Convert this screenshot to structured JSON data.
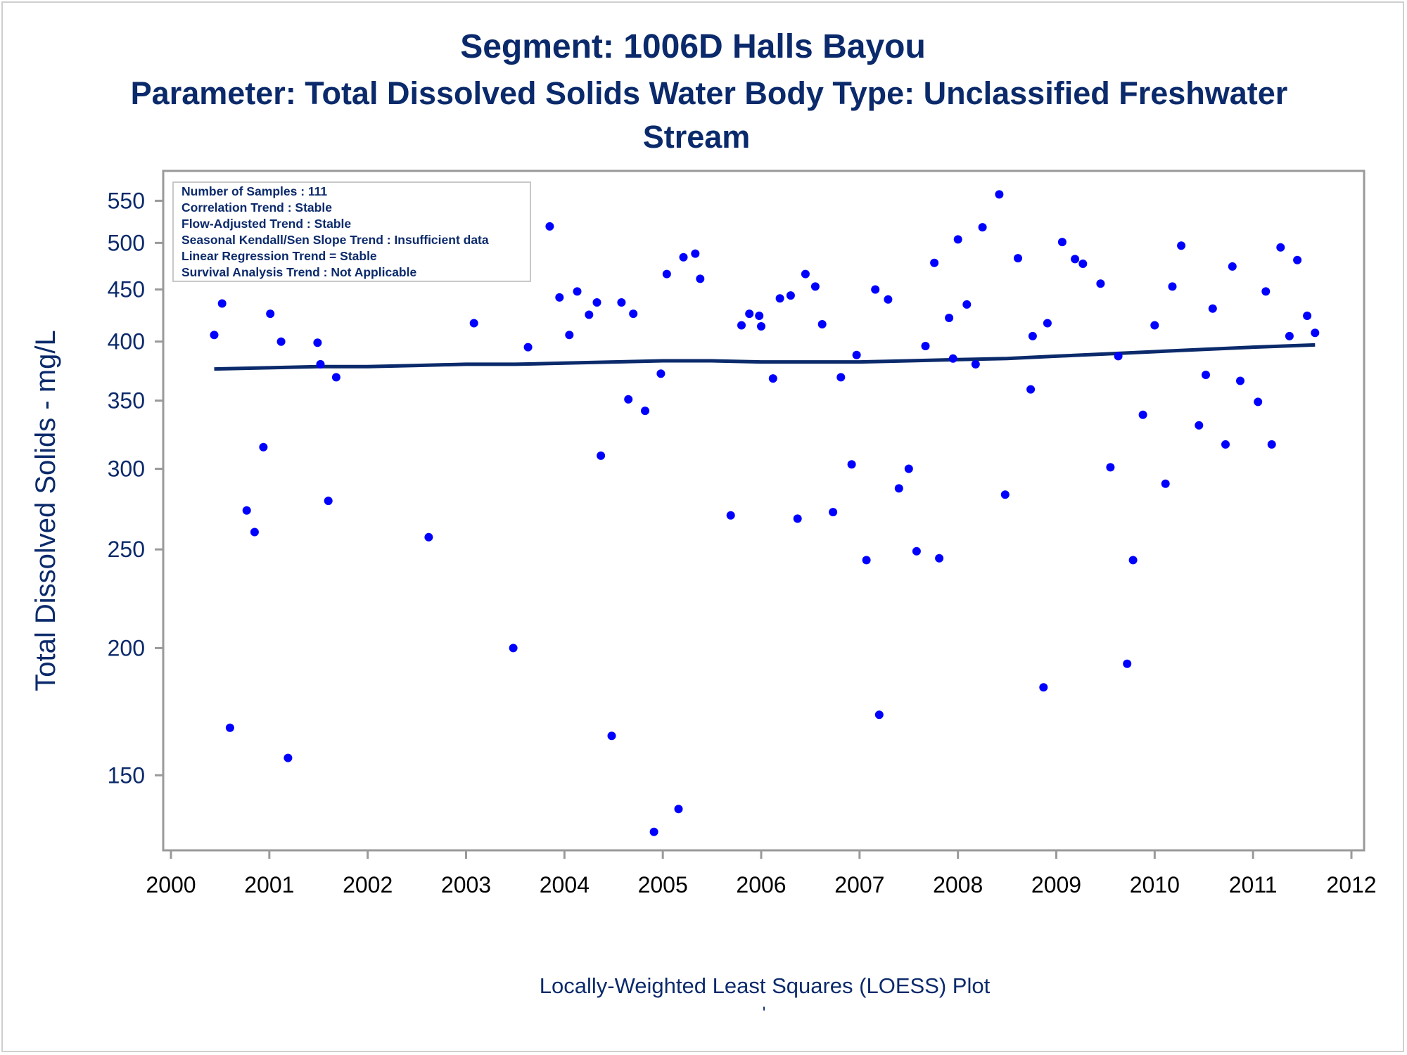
{
  "chart_data": {
    "type": "scatter",
    "title": "Segment: 1006D  Halls Bayou",
    "subtitle_line1": "Parameter: Total Dissolved Solids   Water Body Type: Unclassified Freshwater",
    "subtitle_line2": "Stream",
    "ylabel": "Total Dissolved Solids - mg/L",
    "xlabel": "Locally-Weighted Least Squares (LOESS) Plot",
    "footnote": "'",
    "y_scale": "log",
    "ylim": [
      128,
      570
    ],
    "xlim": [
      2000,
      2012
    ],
    "y_ticks": [
      150,
      200,
      250,
      300,
      350,
      400,
      450,
      500,
      550
    ],
    "x_ticks": [
      2000,
      2001,
      2002,
      2003,
      2004,
      2005,
      2006,
      2007,
      2008,
      2009,
      2010,
      2011,
      2012
    ],
    "grid": false,
    "stats_box": {
      "placement": "top-left",
      "lines": [
        "Number of Samples : 111",
        "Correlation Trend : Stable",
        "Flow-Adjusted Trend : Stable",
        "Seasonal Kendall/Sen Slope Trend : Insufficient data",
        "Linear Regression Trend = Stable",
        "Survival Analysis Trend : Not Applicable"
      ]
    },
    "colors": {
      "points": "#0000ff",
      "loess": "#0b2a6b",
      "text": "#0b2a6b",
      "axis": "#9a9a9a"
    },
    "points": [
      [
        2000.44,
        406
      ],
      [
        2000.52,
        436
      ],
      [
        2000.6,
        167
      ],
      [
        2000.69,
        468
      ],
      [
        2000.77,
        273
      ],
      [
        2000.85,
        260
      ],
      [
        2000.94,
        315
      ],
      [
        2001.01,
        426
      ],
      [
        2001.12,
        400
      ],
      [
        2001.19,
        156
      ],
      [
        2001.26,
        470
      ],
      [
        2001.33,
        483
      ],
      [
        2001.49,
        399
      ],
      [
        2001.52,
        380
      ],
      [
        2001.6,
        279
      ],
      [
        2001.68,
        369
      ],
      [
        2001.85,
        466
      ],
      [
        2002.1,
        489
      ],
      [
        2002.38,
        501
      ],
      [
        2002.62,
        257
      ],
      [
        2002.9,
        496
      ],
      [
        2003.08,
        417
      ],
      [
        2003.37,
        534
      ],
      [
        2003.48,
        200
      ],
      [
        2003.57,
        477
      ],
      [
        2003.63,
        395
      ],
      [
        2003.85,
        519
      ],
      [
        2003.95,
        442
      ],
      [
        2004.05,
        406
      ],
      [
        2004.13,
        448
      ],
      [
        2004.25,
        425
      ],
      [
        2004.33,
        437
      ],
      [
        2004.37,
        309
      ],
      [
        2004.48,
        164
      ],
      [
        2004.58,
        437
      ],
      [
        2004.65,
        351
      ],
      [
        2004.7,
        426
      ],
      [
        2004.82,
        342
      ],
      [
        2004.91,
        132
      ],
      [
        2004.98,
        372
      ],
      [
        2005.04,
        466
      ],
      [
        2005.16,
        139
      ],
      [
        2005.21,
        484
      ],
      [
        2005.33,
        488
      ],
      [
        2005.38,
        461
      ],
      [
        2005.69,
        270
      ],
      [
        2005.8,
        415
      ],
      [
        2005.88,
        426
      ],
      [
        2005.98,
        424
      ],
      [
        2006.0,
        414
      ],
      [
        2006.12,
        368
      ],
      [
        2006.19,
        441
      ],
      [
        2006.3,
        444
      ],
      [
        2006.37,
        268
      ],
      [
        2006.45,
        466
      ],
      [
        2006.55,
        453
      ],
      [
        2006.62,
        416
      ],
      [
        2006.73,
        272
      ],
      [
        2006.81,
        369
      ],
      [
        2006.92,
        303
      ],
      [
        2006.97,
        388
      ],
      [
        2007.07,
        244
      ],
      [
        2007.16,
        450
      ],
      [
        2007.2,
        172
      ],
      [
        2007.29,
        440
      ],
      [
        2007.4,
        287
      ],
      [
        2007.5,
        300
      ],
      [
        2007.58,
        249
      ],
      [
        2007.67,
        396
      ],
      [
        2007.76,
        478
      ],
      [
        2007.81,
        245
      ],
      [
        2007.91,
        422
      ],
      [
        2007.95,
        385
      ],
      [
        2008.0,
        504
      ],
      [
        2008.09,
        435
      ],
      [
        2008.18,
        380
      ],
      [
        2008.25,
        518
      ],
      [
        2008.42,
        558
      ],
      [
        2008.48,
        283
      ],
      [
        2008.61,
        483
      ],
      [
        2008.74,
        359
      ],
      [
        2008.76,
        405
      ],
      [
        2008.87,
        183
      ],
      [
        2008.91,
        417
      ],
      [
        2009.06,
        501
      ],
      [
        2009.19,
        482
      ],
      [
        2009.27,
        477
      ],
      [
        2009.45,
        456
      ],
      [
        2009.55,
        301
      ],
      [
        2009.63,
        387
      ],
      [
        2009.72,
        193
      ],
      [
        2009.78,
        244
      ],
      [
        2009.88,
        339
      ],
      [
        2010.0,
        415
      ],
      [
        2010.11,
        290
      ],
      [
        2010.18,
        453
      ],
      [
        2010.27,
        497
      ],
      [
        2010.45,
        331
      ],
      [
        2010.52,
        371
      ],
      [
        2010.59,
        431
      ],
      [
        2010.72,
        317
      ],
      [
        2010.79,
        474
      ],
      [
        2010.87,
        366
      ],
      [
        2011.05,
        349
      ],
      [
        2011.13,
        448
      ],
      [
        2011.19,
        317
      ],
      [
        2011.28,
        495
      ],
      [
        2011.37,
        405
      ],
      [
        2011.45,
        481
      ],
      [
        2011.55,
        424
      ],
      [
        2011.63,
        408
      ]
    ],
    "loess": [
      [
        2000.44,
        376
      ],
      [
        2001.0,
        377
      ],
      [
        2001.5,
        378
      ],
      [
        2002.0,
        378
      ],
      [
        2002.5,
        379
      ],
      [
        2003.0,
        380
      ],
      [
        2003.5,
        380
      ],
      [
        2004.0,
        381
      ],
      [
        2004.5,
        382
      ],
      [
        2005.0,
        383
      ],
      [
        2005.5,
        383
      ],
      [
        2006.0,
        382
      ],
      [
        2006.5,
        382
      ],
      [
        2007.0,
        382
      ],
      [
        2007.5,
        383
      ],
      [
        2008.0,
        384
      ],
      [
        2008.5,
        385
      ],
      [
        2009.0,
        387
      ],
      [
        2009.5,
        389
      ],
      [
        2010.0,
        391
      ],
      [
        2010.5,
        393
      ],
      [
        2011.0,
        395
      ],
      [
        2011.63,
        397
      ]
    ]
  }
}
